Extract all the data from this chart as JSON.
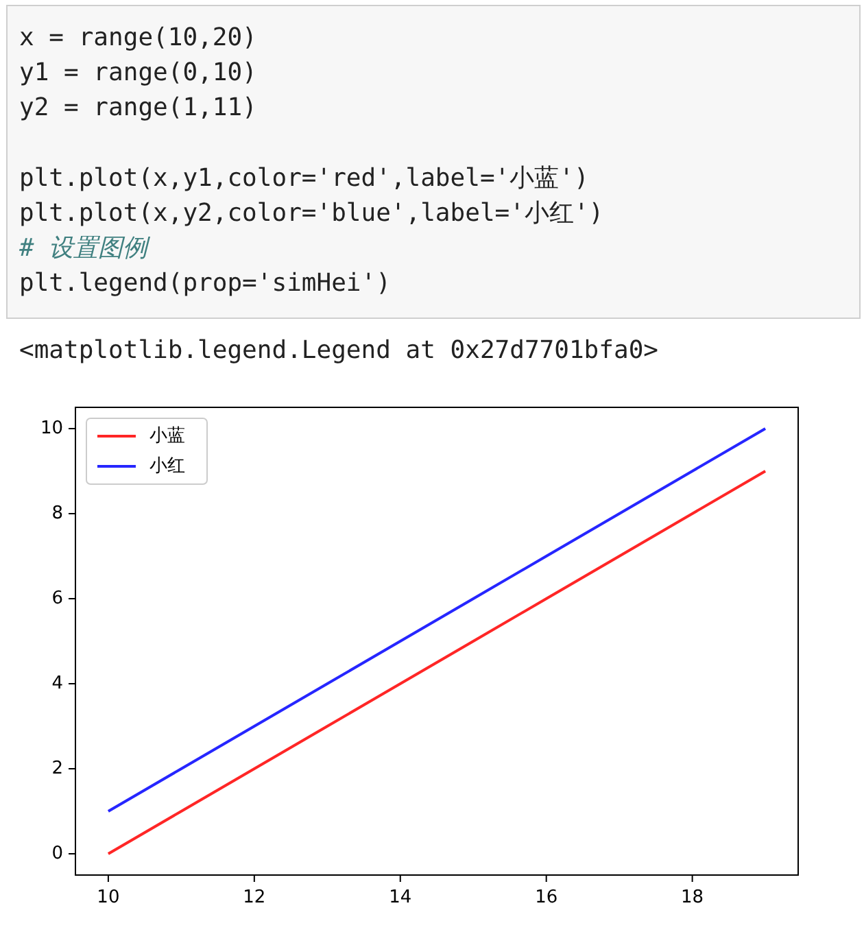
{
  "chart_data": {
    "type": "line",
    "x": [
      10,
      11,
      12,
      13,
      14,
      15,
      16,
      17,
      18,
      19
    ],
    "series": [
      {
        "name": "小蓝",
        "color": "#ff0000",
        "values": [
          0,
          1,
          2,
          3,
          4,
          5,
          6,
          7,
          8,
          9
        ]
      },
      {
        "name": "小红",
        "color": "#0000ff",
        "values": [
          1,
          2,
          3,
          4,
          5,
          6,
          7,
          8,
          9,
          10
        ]
      }
    ],
    "xlim": [
      9.55,
      19.45
    ],
    "xticks": [
      10,
      12,
      14,
      16,
      18
    ],
    "ylim": [
      -0.5,
      10.5
    ],
    "yticks": [
      0,
      2,
      4,
      6,
      8,
      10
    ],
    "legend": "top left",
    "grid": false,
    "annotations": [
      "x = range(10,20)",
      "y1 = range(0,10)",
      "y2 = range(1,11)",
      "plt.plot(x,y1,color='red',label='小蓝')",
      "plt.plot(x,y2,color='blue',label='小红')",
      "# 设置图例",
      "plt.legend(prop='simHei')",
      "<matplotlib.legend.Legend at 0x27d7701bfa0>"
    ]
  }
}
